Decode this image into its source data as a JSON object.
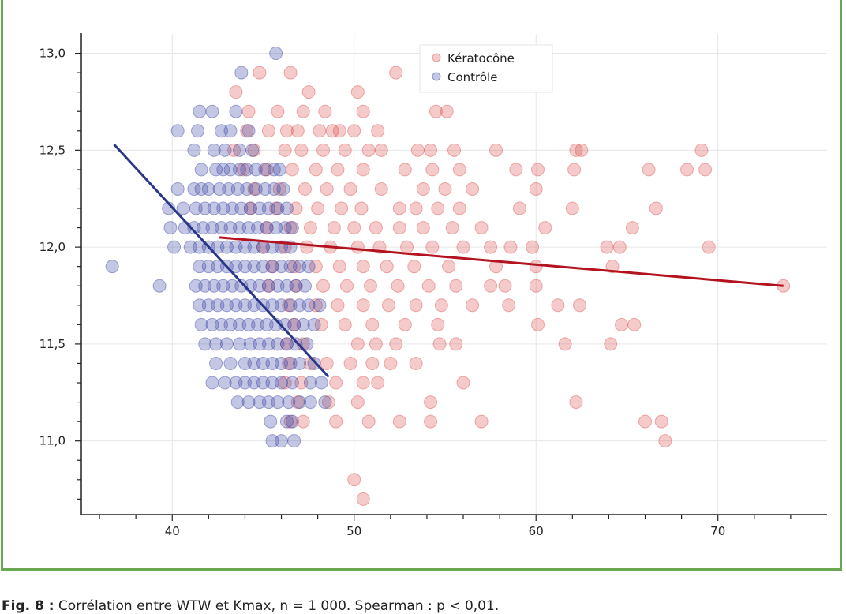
{
  "chart_data": {
    "type": "scatter",
    "xlim": [
      35,
      76
    ],
    "ylim": [
      10.62,
      13.1
    ],
    "x_ticks": [
      "40",
      "50",
      "60",
      "70"
    ],
    "y_ticks": [
      "11,0",
      "11,5",
      "12,0",
      "12,5",
      "13,0"
    ],
    "grid": true,
    "legend_placement": "top-center",
    "series": [
      {
        "name": "Kératocône",
        "color": "#d9534f",
        "points": [
          [
            43.5,
            12.8
          ],
          [
            44.8,
            12.9
          ],
          [
            46.5,
            12.9
          ],
          [
            47.5,
            12.8
          ],
          [
            50.2,
            12.8
          ],
          [
            52.3,
            12.9
          ],
          [
            44.2,
            12.7
          ],
          [
            45.8,
            12.7
          ],
          [
            46.3,
            12.6
          ],
          [
            47.2,
            12.7
          ],
          [
            48.4,
            12.7
          ],
          [
            49.2,
            12.6
          ],
          [
            50.5,
            12.7
          ],
          [
            54.5,
            12.7
          ],
          [
            55.1,
            12.7
          ],
          [
            44.1,
            12.6
          ],
          [
            45.3,
            12.6
          ],
          [
            46.9,
            12.6
          ],
          [
            48.1,
            12.6
          ],
          [
            48.8,
            12.6
          ],
          [
            50.0,
            12.6
          ],
          [
            51.3,
            12.6
          ],
          [
            43.4,
            12.5
          ],
          [
            44.5,
            12.5
          ],
          [
            46.2,
            12.5
          ],
          [
            47.1,
            12.5
          ],
          [
            48.3,
            12.5
          ],
          [
            49.5,
            12.5
          ],
          [
            50.8,
            12.5
          ],
          [
            51.5,
            12.5
          ],
          [
            53.5,
            12.5
          ],
          [
            54.2,
            12.5
          ],
          [
            55.5,
            12.5
          ],
          [
            57.8,
            12.5
          ],
          [
            62.2,
            12.5
          ],
          [
            62.5,
            12.5
          ],
          [
            69.1,
            12.5
          ],
          [
            43.9,
            12.4
          ],
          [
            45.2,
            12.4
          ],
          [
            46.6,
            12.4
          ],
          [
            47.9,
            12.4
          ],
          [
            49.1,
            12.4
          ],
          [
            50.5,
            12.4
          ],
          [
            52.8,
            12.4
          ],
          [
            54.3,
            12.4
          ],
          [
            55.8,
            12.4
          ],
          [
            58.9,
            12.4
          ],
          [
            60.1,
            12.4
          ],
          [
            62.1,
            12.4
          ],
          [
            66.2,
            12.4
          ],
          [
            68.3,
            12.4
          ],
          [
            69.3,
            12.4
          ],
          [
            44.5,
            12.3
          ],
          [
            45.9,
            12.3
          ],
          [
            47.3,
            12.3
          ],
          [
            48.5,
            12.3
          ],
          [
            49.8,
            12.3
          ],
          [
            51.5,
            12.3
          ],
          [
            53.8,
            12.3
          ],
          [
            55.0,
            12.3
          ],
          [
            56.5,
            12.3
          ],
          [
            60.0,
            12.3
          ],
          [
            44.3,
            12.2
          ],
          [
            45.7,
            12.2
          ],
          [
            46.8,
            12.2
          ],
          [
            48.0,
            12.2
          ],
          [
            49.3,
            12.2
          ],
          [
            50.4,
            12.2
          ],
          [
            52.5,
            12.2
          ],
          [
            53.4,
            12.2
          ],
          [
            54.6,
            12.2
          ],
          [
            55.8,
            12.2
          ],
          [
            59.1,
            12.2
          ],
          [
            62.0,
            12.2
          ],
          [
            66.6,
            12.2
          ],
          [
            45.2,
            12.1
          ],
          [
            46.5,
            12.1
          ],
          [
            47.6,
            12.1
          ],
          [
            48.9,
            12.1
          ],
          [
            50.0,
            12.1
          ],
          [
            51.2,
            12.1
          ],
          [
            52.5,
            12.1
          ],
          [
            53.8,
            12.1
          ],
          [
            55.4,
            12.1
          ],
          [
            57.0,
            12.1
          ],
          [
            60.5,
            12.1
          ],
          [
            65.3,
            12.1
          ],
          [
            45.0,
            12.0
          ],
          [
            46.2,
            12.0
          ],
          [
            47.4,
            12.0
          ],
          [
            48.7,
            12.0
          ],
          [
            50.2,
            12.0
          ],
          [
            51.4,
            12.0
          ],
          [
            52.9,
            12.0
          ],
          [
            54.3,
            12.0
          ],
          [
            56.0,
            12.0
          ],
          [
            57.5,
            12.0
          ],
          [
            58.6,
            12.0
          ],
          [
            59.8,
            12.0
          ],
          [
            63.9,
            12.0
          ],
          [
            64.6,
            12.0
          ],
          [
            69.5,
            12.0
          ],
          [
            45.5,
            11.9
          ],
          [
            46.7,
            11.9
          ],
          [
            47.9,
            11.9
          ],
          [
            49.2,
            11.9
          ],
          [
            50.5,
            11.9
          ],
          [
            51.8,
            11.9
          ],
          [
            53.3,
            11.9
          ],
          [
            55.2,
            11.9
          ],
          [
            57.8,
            11.9
          ],
          [
            60.0,
            11.9
          ],
          [
            64.2,
            11.9
          ],
          [
            45.3,
            11.8
          ],
          [
            46.8,
            11.8
          ],
          [
            48.3,
            11.8
          ],
          [
            49.6,
            11.8
          ],
          [
            50.9,
            11.8
          ],
          [
            52.4,
            11.8
          ],
          [
            54.1,
            11.8
          ],
          [
            55.6,
            11.8
          ],
          [
            57.5,
            11.8
          ],
          [
            58.3,
            11.8
          ],
          [
            60.0,
            11.8
          ],
          [
            73.6,
            11.8
          ],
          [
            46.4,
            11.7
          ],
          [
            47.9,
            11.7
          ],
          [
            49.1,
            11.7
          ],
          [
            50.5,
            11.7
          ],
          [
            51.9,
            11.7
          ],
          [
            53.4,
            11.7
          ],
          [
            54.8,
            11.7
          ],
          [
            56.5,
            11.7
          ],
          [
            58.5,
            11.7
          ],
          [
            61.2,
            11.7
          ],
          [
            62.4,
            11.7
          ],
          [
            46.7,
            11.6
          ],
          [
            48.2,
            11.6
          ],
          [
            49.5,
            11.6
          ],
          [
            51.0,
            11.6
          ],
          [
            52.8,
            11.6
          ],
          [
            54.6,
            11.6
          ],
          [
            60.1,
            11.6
          ],
          [
            64.7,
            11.6
          ],
          [
            65.4,
            11.6
          ],
          [
            46.3,
            11.5
          ],
          [
            47.2,
            11.5
          ],
          [
            50.2,
            11.5
          ],
          [
            51.2,
            11.5
          ],
          [
            52.3,
            11.5
          ],
          [
            54.7,
            11.5
          ],
          [
            55.6,
            11.5
          ],
          [
            61.6,
            11.5
          ],
          [
            64.1,
            11.5
          ],
          [
            46.4,
            11.4
          ],
          [
            47.6,
            11.4
          ],
          [
            48.5,
            11.4
          ],
          [
            49.8,
            11.4
          ],
          [
            51.0,
            11.4
          ],
          [
            52.0,
            11.4
          ],
          [
            53.4,
            11.4
          ],
          [
            46.2,
            11.3
          ],
          [
            47.1,
            11.3
          ],
          [
            49.0,
            11.3
          ],
          [
            50.5,
            11.3
          ],
          [
            51.3,
            11.3
          ],
          [
            56.0,
            11.3
          ],
          [
            46.9,
            11.2
          ],
          [
            48.6,
            11.2
          ],
          [
            50.2,
            11.2
          ],
          [
            54.2,
            11.2
          ],
          [
            62.2,
            11.2
          ],
          [
            46.5,
            11.1
          ],
          [
            47.2,
            11.1
          ],
          [
            49.0,
            11.1
          ],
          [
            50.8,
            11.1
          ],
          [
            52.5,
            11.1
          ],
          [
            54.2,
            11.1
          ],
          [
            57.0,
            11.1
          ],
          [
            66.0,
            11.1
          ],
          [
            66.9,
            11.1
          ],
          [
            67.1,
            11.0
          ],
          [
            50.0,
            10.8
          ],
          [
            50.5,
            10.7
          ]
        ]
      },
      {
        "name": "Contrôle",
        "color": "#3b46a5",
        "rows": [
          {
            "y": 13.0,
            "xs": [
              45.7
            ]
          },
          {
            "y": 12.9,
            "xs": [
              43.8
            ]
          },
          {
            "y": 12.8,
            "xs": []
          },
          {
            "y": 12.7,
            "xs": [
              41.5,
              42.2,
              43.5
            ]
          },
          {
            "y": 12.6,
            "xs": [
              40.3,
              41.4,
              42.7,
              43.2,
              44.2
            ]
          },
          {
            "y": 12.5,
            "xs": [
              41.2,
              42.3,
              42.9,
              43.7,
              44.4
            ]
          },
          {
            "y": 12.4,
            "xs": [
              41.6,
              42.4,
              42.8,
              43.2,
              43.7,
              44.1,
              44.6,
              45.1,
              45.6,
              45.9
            ]
          },
          {
            "y": 12.3,
            "xs": [
              40.3,
              41.2,
              41.6,
              42.0,
              42.6,
              43.1,
              43.6,
              44.1,
              44.6,
              45.1,
              45.6,
              46.1
            ]
          },
          {
            "y": 12.2,
            "xs": [
              39.8,
              40.6,
              41.3,
              41.8,
              42.3,
              42.8,
              43.3,
              43.8,
              44.3,
              44.8,
              45.3,
              45.8,
              46.3
            ]
          },
          {
            "y": 12.1,
            "xs": [
              39.9,
              40.7,
              41.2,
              41.7,
              42.2,
              42.7,
              43.2,
              43.7,
              44.2,
              44.7,
              45.2,
              45.7,
              46.2,
              46.6
            ]
          },
          {
            "y": 12.0,
            "xs": [
              40.1,
              41.0,
              41.5,
              42.0,
              42.5,
              43.0,
              43.5,
              44.0,
              44.5,
              45.0,
              45.5,
              46.0,
              46.5
            ]
          },
          {
            "y": 11.9,
            "xs": [
              36.7,
              41.5,
              42.0,
              42.5,
              43.0,
              43.5,
              44.0,
              44.5,
              45.0,
              45.5,
              46.0,
              46.5,
              47.0,
              47.5
            ]
          },
          {
            "y": 11.8,
            "xs": [
              39.3,
              41.3,
              41.8,
              42.3,
              42.8,
              43.3,
              43.8,
              44.3,
              44.8,
              45.3,
              45.8,
              46.3,
              46.8,
              47.3
            ]
          },
          {
            "y": 11.7,
            "xs": [
              41.5,
              42.0,
              42.5,
              43.0,
              43.5,
              44.0,
              44.5,
              45.0,
              45.5,
              46.0,
              46.5,
              47.0,
              47.5,
              48.1
            ]
          },
          {
            "y": 11.6,
            "xs": [
              41.6,
              42.2,
              42.7,
              43.2,
              43.7,
              44.2,
              44.7,
              45.2,
              45.7,
              46.2,
              46.7,
              47.2,
              47.8
            ]
          },
          {
            "y": 11.5,
            "xs": [
              41.8,
              42.4,
              43.0,
              43.7,
              44.3,
              44.8,
              45.3,
              45.8,
              46.3,
              46.8,
              47.4
            ]
          },
          {
            "y": 11.4,
            "xs": [
              42.4,
              43.2,
              44.0,
              44.5,
              45.0,
              45.5,
              46.0,
              46.5,
              47.0,
              47.8
            ]
          },
          {
            "y": 11.3,
            "xs": [
              42.2,
              42.9,
              43.5,
              44.0,
              44.5,
              45.0,
              45.5,
              46.0,
              46.6,
              47.6,
              48.2
            ]
          },
          {
            "y": 11.2,
            "xs": [
              43.6,
              44.2,
              44.8,
              45.3,
              45.8,
              46.4,
              47.0,
              47.6,
              48.4
            ]
          },
          {
            "y": 11.1,
            "xs": [
              45.4,
              46.3,
              46.6
            ]
          },
          {
            "y": 11.0,
            "xs": [
              45.5,
              46.0,
              46.7
            ]
          }
        ]
      }
    ],
    "trend_lines": [
      {
        "series": "Kératocône",
        "color": "#b3121f",
        "x": [
          42.6,
          73.6
        ],
        "y": [
          12.05,
          11.8
        ]
      },
      {
        "series": "Contrôle",
        "color": "#2a3688",
        "x": [
          36.8,
          48.6
        ],
        "y": [
          12.53,
          11.33
        ]
      }
    ]
  },
  "caption": {
    "label": "Fig. 8 :",
    "text": " Corrélation entre WTW et Kmax, n = 1 000. Spearman : p < 0,01."
  }
}
